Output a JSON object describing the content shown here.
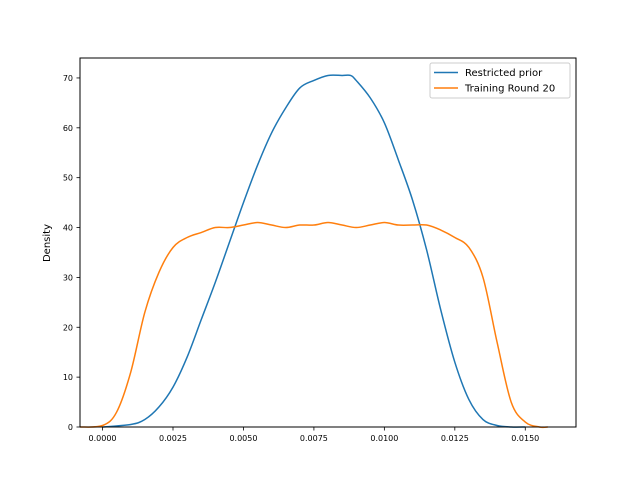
{
  "chart_data": {
    "type": "line",
    "title": "",
    "xlabel": "",
    "ylabel": "Density",
    "xlim": [
      -0.0008,
      0.0168
    ],
    "ylim": [
      0,
      74
    ],
    "xticks": [
      0.0,
      0.0025,
      0.005,
      0.0075,
      0.01,
      0.0125,
      0.015
    ],
    "xtick_labels": [
      "0.0000",
      "0.0025",
      "0.0050",
      "0.0075",
      "0.0100",
      "0.0125",
      "0.0150"
    ],
    "yticks": [
      0,
      10,
      20,
      30,
      40,
      50,
      60,
      70
    ],
    "ytick_labels": [
      "0",
      "10",
      "20",
      "30",
      "40",
      "50",
      "60",
      "70"
    ],
    "grid": false,
    "legend_position": "upper right",
    "series": [
      {
        "name": "Restricted prior",
        "color": "#1f77b4",
        "x": [
          0.0,
          0.001,
          0.0015,
          0.002,
          0.0025,
          0.003,
          0.0035,
          0.004,
          0.0045,
          0.005,
          0.0055,
          0.006,
          0.0065,
          0.007,
          0.0075,
          0.008,
          0.0085,
          0.0088,
          0.009,
          0.0095,
          0.01,
          0.0105,
          0.011,
          0.0115,
          0.012,
          0.0125,
          0.013,
          0.0135,
          0.014,
          0.0145,
          0.015
        ],
        "y": [
          0,
          0.5,
          1.5,
          4,
          8,
          14,
          21.5,
          29,
          37,
          45,
          52.5,
          59,
          64,
          68,
          69.5,
          70.5,
          70.5,
          70.5,
          69.5,
          66,
          61,
          53.5,
          45.5,
          35.5,
          23.5,
          13,
          5.5,
          1.5,
          0.3,
          0,
          0
        ]
      },
      {
        "name": "Training Round 20",
        "color": "#ff7f0e",
        "x": [
          -0.0008,
          0.0,
          0.0005,
          0.001,
          0.0015,
          0.002,
          0.0025,
          0.003,
          0.0035,
          0.004,
          0.0045,
          0.005,
          0.0055,
          0.006,
          0.0065,
          0.007,
          0.0075,
          0.008,
          0.0085,
          0.009,
          0.0095,
          0.01,
          0.0105,
          0.011,
          0.0115,
          0.012,
          0.0125,
          0.013,
          0.0135,
          0.014,
          0.0145,
          0.015,
          0.0155,
          0.0158
        ],
        "y": [
          0,
          0.3,
          3,
          11,
          23,
          31,
          36,
          38,
          39,
          40,
          40,
          40.5,
          41,
          40.5,
          40,
          40.5,
          40.5,
          41,
          40.5,
          40,
          40.5,
          41,
          40.5,
          40.5,
          40.5,
          39.5,
          38,
          36,
          30,
          17,
          5,
          1,
          0,
          0
        ]
      }
    ]
  }
}
